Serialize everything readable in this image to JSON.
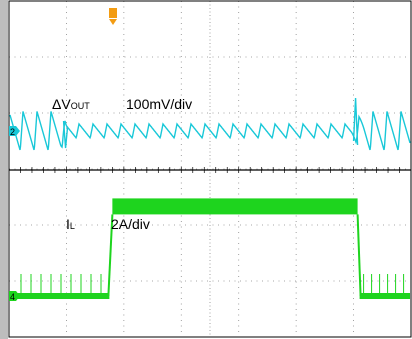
{
  "chart_data": {
    "type": "line",
    "title": "",
    "grid": true,
    "colors": {
      "dvout": "#19c8d8",
      "il": "#1ed41e",
      "grid": "#8a8a8a",
      "frame": "#000000",
      "marker_ch2": "#19c8d8",
      "marker_ch4": "#1ed41e",
      "trigger": "#f39c12"
    },
    "channel_markers": [
      "2",
      "4"
    ],
    "series": [
      {
        "id": "dvout",
        "label_main": "ΔV",
        "label_sub": "OUT",
        "scale": "100mV/div",
        "x_div": [
          0,
          0.9,
          1.0,
          5.95,
          6.2,
          7.0
        ],
        "level_div": [
          0,
          0,
          0,
          0,
          0,
          0
        ],
        "ripple_div": [
          0.7,
          0.7,
          0.25,
          0.25,
          0.7,
          0.7
        ]
      },
      {
        "id": "il",
        "label_main": "I",
        "label_sub": "L",
        "scale": "2A/div",
        "x_div": [
          0,
          1.72,
          1.8,
          6.07,
          6.12,
          7.0
        ],
        "level_div": [
          0,
          0,
          1.6,
          1.6,
          0,
          0
        ]
      }
    ]
  }
}
